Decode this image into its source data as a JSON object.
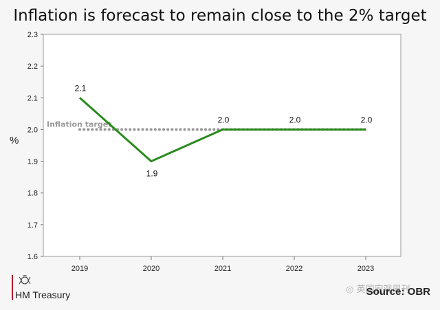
{
  "header": {
    "title": "Inflation is forecast to remain close to the 2% target"
  },
  "chart_data": {
    "type": "line",
    "title": "Inflation is forecast to remain close to the 2% target",
    "ylabel": "%",
    "xlabel": "",
    "categories": [
      "2019",
      "2020",
      "2021",
      "2022",
      "2023"
    ],
    "series": [
      {
        "values": [
          2.1,
          1.9,
          2.0,
          2.0,
          2.0
        ],
        "color": "#2a8a1e"
      }
    ],
    "data_labels": [
      "2.1",
      "1.9",
      "2.0",
      "2.0",
      "2.0"
    ],
    "target": {
      "label": "Inflation target",
      "value": 2.0,
      "color": "#999999",
      "style": "dotted"
    },
    "ylim": [
      1.6,
      2.3
    ],
    "yticks": [
      "1.6",
      "1.7",
      "1.8",
      "1.9",
      "2.0",
      "2.1",
      "2.2",
      "2.3"
    ],
    "grid": false,
    "legend": "none"
  },
  "footer": {
    "organisation": "HM Treasury",
    "source": "Source: OBR",
    "watermark": "英国宏观周刊",
    "crest_icon": "royal-crest-icon",
    "wechat_icon": "wechat-icon",
    "rule_color": "#b2002a"
  }
}
